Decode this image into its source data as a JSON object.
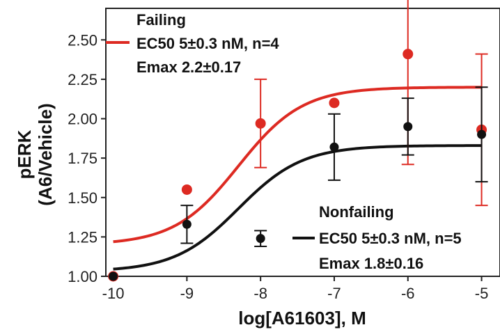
{
  "chart_data": {
    "type": "scatter",
    "xlabel": "log[A61603], M",
    "ylabel_line1": "pERK",
    "ylabel_line2": "(A6/Vehicle)",
    "xlim": [
      -10.1,
      -4.75
    ],
    "ylim": [
      1.0,
      2.7
    ],
    "x_ticks": [
      -10,
      -9,
      -8,
      -7,
      -6,
      -5
    ],
    "x_tick_labels": [
      "-10",
      "-9",
      "-8",
      "-7",
      "-6",
      "-5"
    ],
    "y_ticks": [
      1.0,
      1.25,
      1.5,
      1.75,
      2.0,
      2.25,
      2.5
    ],
    "y_tick_labels": [
      "1.00",
      "1.25",
      "1.50",
      "1.75",
      "2.00",
      "2.25",
      "2.50"
    ],
    "grid": false,
    "series": [
      {
        "name": "Failing",
        "color": "#dd2a22",
        "x": [
          -10,
          -9,
          -8,
          -7,
          -6,
          -5
        ],
        "y": [
          1.0,
          1.55,
          1.97,
          2.1,
          2.41,
          1.93
        ],
        "err": [
          0,
          0,
          0.28,
          0,
          0.7,
          0.48
        ],
        "fit": {
          "bottom": 1.2,
          "top": 2.2,
          "logEC50": -8.3,
          "hill": 1
        },
        "legend_lines": [
          "Failing",
          "EC50 5±0.3 nM, n=4",
          "Emax 2.2±0.17"
        ]
      },
      {
        "name": "Nonfailing",
        "color": "#111111",
        "x": [
          -10,
          -9,
          -8,
          -7,
          -6,
          -5
        ],
        "y": [
          1.0,
          1.33,
          1.24,
          1.82,
          1.95,
          1.9
        ],
        "err": [
          0,
          0.12,
          0.05,
          0.21,
          0.18,
          0.3
        ],
        "fit": {
          "bottom": 1.03,
          "top": 1.83,
          "logEC50": -8.3,
          "hill": 1
        },
        "legend_lines": [
          "Nonfailing",
          "EC50 5±0.3 nM, n=5",
          "Emax 1.8±0.16"
        ]
      }
    ]
  }
}
